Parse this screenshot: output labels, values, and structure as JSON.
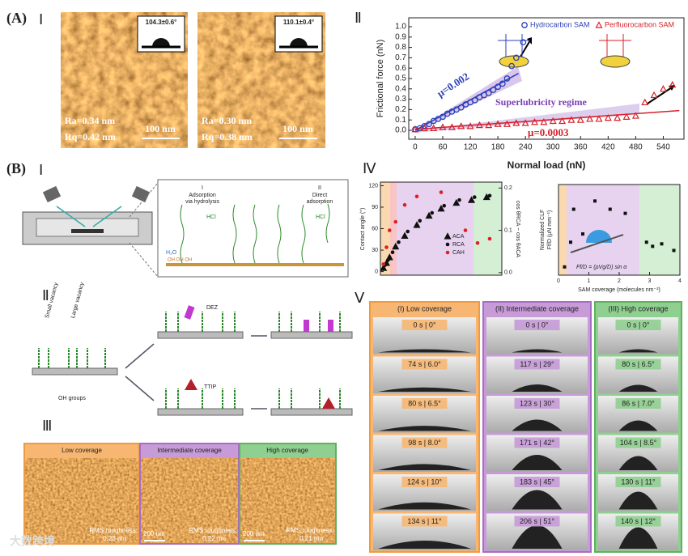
{
  "figure": {
    "panel_labels": [
      "(A)",
      "Ⅰ",
      "Ⅱ",
      "(B)",
      "Ⅰ",
      "Ⅳ",
      "Ⅱ",
      "Ⅲ",
      "Ⅴ"
    ],
    "afm": [
      {
        "angle": "104.3±0.6°",
        "ra": "Ra=0.34 nm",
        "rq": "Rq=0.42 nm",
        "scale": "100 nm"
      },
      {
        "angle": "110.1±0.4°",
        "ra": "Ra=0.30 nm",
        "rq": "Rq=0.38 nm",
        "scale": "100 nm"
      }
    ],
    "deposition": {
      "stage_1": "I",
      "stage_1_a": "Adsorption",
      "stage_1_b": "via hydrolysis",
      "stage_2": "II",
      "stage_2_a": "Direct",
      "stage_2_b": "adsorption",
      "hcl": "HCl",
      "water": "H₂O",
      "oh": "OH OH OH"
    },
    "vacancy": {
      "small": "Small vacancy",
      "large": "Large vacancy",
      "oh": "OH groups",
      "dez": "DEZ",
      "ttip": "TTIP"
    },
    "roughness": [
      {
        "header": "Low coverage",
        "rms_label": "RMS roughness:",
        "rms": "0.23 nm"
      },
      {
        "header": "Intermediate coverage",
        "rms_label": "RMS roughness:",
        "rms": "0.22 nm",
        "scale": "200 nm"
      },
      {
        "header": "High coverage",
        "rms_label": "RMS roughness:",
        "rms": "0.21 nm",
        "scale": "200 nm"
      }
    ],
    "droplets": [
      {
        "header": "(I) Low coverage",
        "frames": [
          "0 s | 0°",
          "74 s | 6.0°",
          "80 s | 6.5°",
          "98 s | 8.0°",
          "124 s | 10°",
          "134 s | 11°"
        ]
      },
      {
        "header": "(II) Intermediate coverage",
        "frames": [
          "0 s | 0°",
          "117 s | 29°",
          "123 s | 30°",
          "171 s | 42°",
          "183 s | 45°",
          "206 s | 51°"
        ]
      },
      {
        "header": "(III) High coverage",
        "frames": [
          "0 s | 0°",
          "80 s | 6.5°",
          "86 s | 7.0°",
          "104 s | 8.5°",
          "130 s | 11°",
          "140 s | 12°"
        ]
      }
    ],
    "watermark": "大数跨境"
  },
  "chart_data": [
    {
      "type": "scatter",
      "xlabel": "Normal load (nN)",
      "ylabel": "Frictional force (nN)",
      "xlim": [
        -14,
        585
      ],
      "ylim": [
        -0.086,
        1.086
      ],
      "xticks": [
        0,
        60,
        120,
        180,
        240,
        300,
        360,
        420,
        480,
        540
      ],
      "yticks": [
        {
          "value": 0,
          "label": "0.0"
        },
        0.1,
        0.2,
        0.3,
        0.4,
        0.5,
        0.6,
        0.7,
        0.8,
        0.9,
        {
          "value": 1,
          "label": "1.0"
        }
      ],
      "annotations": [
        "μ=0.002",
        "Superlubricity regime",
        "μ=0.0003"
      ],
      "series": [
        {
          "name": "Hydrocarbon SAM",
          "color": "#2b3fb8",
          "marker": "circle",
          "x": [
            0,
            10,
            20,
            30,
            40,
            50,
            60,
            70,
            80,
            90,
            100,
            110,
            120,
            130,
            140,
            150,
            160,
            170,
            180,
            190,
            200,
            210,
            220,
            235
          ],
          "values": [
            0.01,
            0.02,
            0.04,
            0.06,
            0.09,
            0.11,
            0.13,
            0.16,
            0.18,
            0.2,
            0.22,
            0.25,
            0.27,
            0.29,
            0.32,
            0.34,
            0.36,
            0.39,
            0.42,
            0.45,
            0.5,
            0.62,
            0.7,
            0.85
          ]
        },
        {
          "name": "Perfluorocarbon SAM",
          "color": "#d8202a",
          "marker": "triangle",
          "x": [
            0,
            20,
            40,
            60,
            80,
            100,
            120,
            140,
            160,
            180,
            200,
            220,
            240,
            260,
            280,
            300,
            320,
            340,
            360,
            380,
            400,
            420,
            440,
            460,
            480,
            500,
            520,
            540,
            560
          ],
          "values": [
            0.01,
            0.02,
            0.02,
            0.03,
            0.03,
            0.04,
            0.04,
            0.05,
            0.05,
            0.06,
            0.06,
            0.07,
            0.07,
            0.08,
            0.08,
            0.09,
            0.09,
            0.1,
            0.1,
            0.11,
            0.11,
            0.12,
            0.12,
            0.13,
            0.14,
            0.27,
            0.34,
            0.4,
            0.44
          ]
        }
      ],
      "fits": [
        {
          "color": "#2b3fb8",
          "x": [
            0,
            225
          ],
          "values": [
            0,
            0.55
          ]
        },
        {
          "color": "#d8202a",
          "x": [
            0,
            575
          ],
          "values": [
            0.01,
            0.19
          ]
        }
      ]
    },
    {
      "type": "scatter",
      "ylabel": "Contact angle (°)",
      "y2label": "cos θRCA − cos θACA",
      "xlim": [
        0,
        4
      ],
      "ylim": [
        -5,
        125
      ],
      "yticks": [
        0,
        30,
        60,
        90,
        120
      ],
      "y2lim": [
        -0.006,
        0.214
      ],
      "y2ticks": [
        {
          "value": 0,
          "label": "0.0"
        },
        0.1,
        0.2
      ],
      "series": [
        {
          "name": "ACA",
          "color": "#111111",
          "marker": "triangle",
          "x": [
            0.1,
            0.2,
            0.3,
            0.5,
            0.8,
            1.2,
            1.6,
            2.0,
            2.5,
            3.0,
            3.5
          ],
          "values": [
            5,
            12,
            20,
            35,
            50,
            65,
            78,
            88,
            96,
            100,
            104
          ]
        },
        {
          "name": "RCA",
          "color": "#111111",
          "marker": "dot",
          "x": [
            0.15,
            0.25,
            0.4,
            0.6,
            0.9,
            1.3,
            1.7,
            2.1,
            2.6,
            3.1,
            3.6
          ],
          "values": [
            9,
            16,
            27,
            41,
            56,
            71,
            82,
            92,
            100,
            104,
            106
          ]
        },
        {
          "name": "CAH",
          "color": "#e02020",
          "marker": "dot",
          "axis": "y2",
          "x": [
            0.1,
            0.2,
            0.3,
            0.5,
            0.8,
            1.2,
            2.0,
            2.8,
            3.2,
            3.6
          ],
          "values": [
            0.02,
            0.06,
            0.1,
            0.12,
            0.16,
            0.18,
            0.19,
            0.1,
            0.07,
            0.08
          ]
        }
      ]
    },
    {
      "type": "scatter",
      "ylabel": "Normalized CLF",
      "ylabel2": "Ff/D (μN mm⁻¹)",
      "xlabel": "SAM coverage (molecules nm⁻²)",
      "formula": "Ff/D = (ρVg/D) sin α",
      "xlim": [
        0,
        4
      ],
      "ylim": [
        0,
        11
      ],
      "xticks": [
        0,
        1,
        2,
        3,
        4
      ],
      "series": [
        {
          "color": "#111111",
          "marker": "square",
          "x": [
            0.2,
            0.4,
            0.5,
            0.8,
            1.2,
            1.7,
            2.2,
            2.9,
            3.1,
            3.4,
            3.8
          ],
          "values": [
            1,
            4,
            8,
            5,
            9,
            8,
            7.5,
            4,
            3.5,
            3.8,
            3
          ]
        }
      ]
    }
  ]
}
